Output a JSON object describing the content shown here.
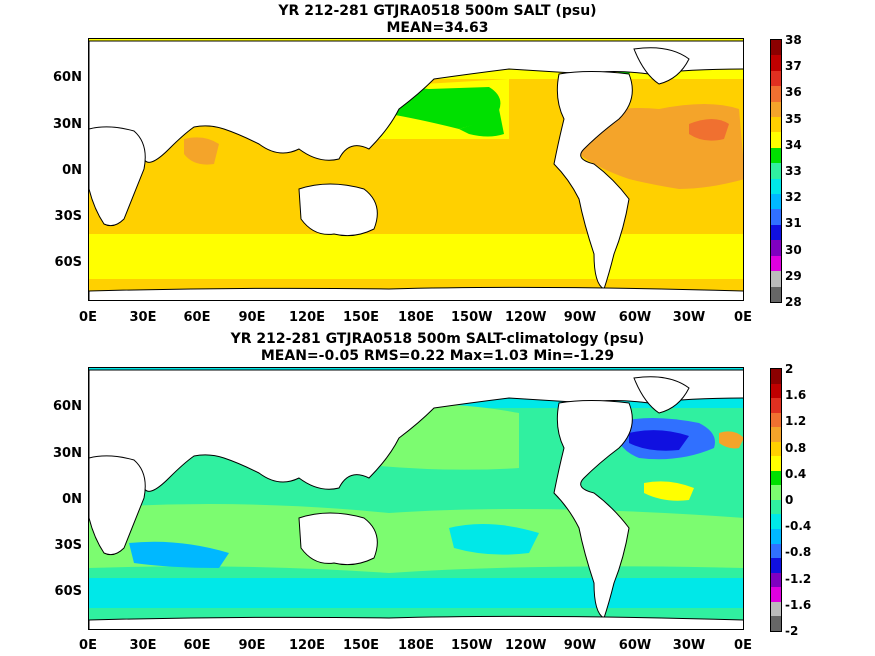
{
  "chart_data": [
    {
      "type": "heatmap",
      "title": "YR 212-281 GTJRA0518 500m SALT (psu)",
      "subtitle": "MEAN=34.63",
      "y_ticks": [
        "60N",
        "30N",
        "0N",
        "30S",
        "60S"
      ],
      "x_ticks": [
        "0E",
        "30E",
        "60E",
        "90E",
        "120E",
        "150E",
        "180E",
        "150W",
        "120W",
        "90W",
        "60W",
        "30W",
        "0E"
      ],
      "colorbar": {
        "labels": [
          "38",
          "37",
          "36",
          "35",
          "34",
          "33",
          "32",
          "31",
          "30",
          "29",
          "28"
        ],
        "colors": [
          "#8b0000",
          "#c00000",
          "#e03020",
          "#f07030",
          "#f4a42a",
          "#ffd000",
          "#ffff00",
          "#00e000",
          "#30f0a0",
          "#00e8e8",
          "#00b8ff",
          "#3070ff",
          "#1010e0",
          "#8000c0",
          "#e000e0",
          "#bbbbbb",
          "#666666"
        ]
      }
    },
    {
      "type": "heatmap",
      "title": "YR 212-281 GTJRA0518 500m SALT-climatology (psu)",
      "subtitle": "MEAN=-0.05   RMS=0.22   Max=1.03   Min=-1.29",
      "y_ticks": [
        "60N",
        "30N",
        "0N",
        "30S",
        "60S"
      ],
      "x_ticks": [
        "0E",
        "30E",
        "60E",
        "90E",
        "120E",
        "150E",
        "180E",
        "150W",
        "120W",
        "90W",
        "60W",
        "30W",
        "0E"
      ],
      "colorbar": {
        "labels": [
          "2",
          "1.6",
          "1.2",
          "0.8",
          "0.4",
          "0",
          "-0.4",
          "-0.8",
          "-1.2",
          "-1.6",
          "-2"
        ],
        "colors": [
          "#8b0000",
          "#c00000",
          "#e03020",
          "#f07030",
          "#f4a42a",
          "#ffd000",
          "#ffff00",
          "#00e000",
          "#7cfc70",
          "#30f0a0",
          "#00e8e8",
          "#00b8ff",
          "#3070ff",
          "#1010e0",
          "#8000c0",
          "#e000e0",
          "#bbbbbb",
          "#666666"
        ]
      }
    }
  ]
}
